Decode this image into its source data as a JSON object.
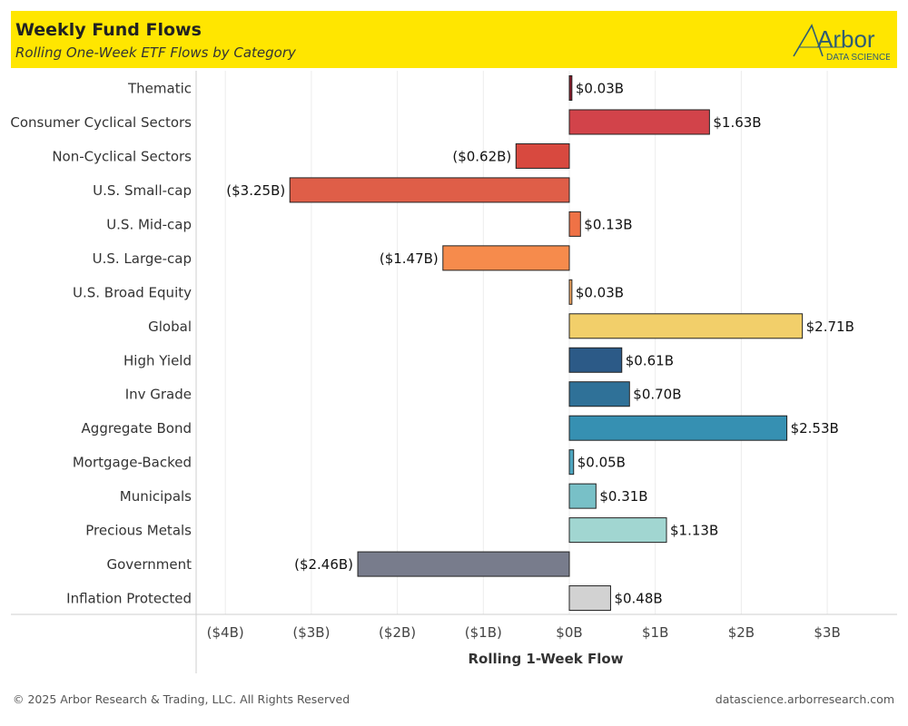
{
  "header": {
    "title": "Weekly Fund Flows",
    "subtitle": "Rolling One-Week ETF Flows by Category",
    "logo_main": "Arbor",
    "logo_sub": "DATA SCIENCE",
    "background": "#ffe600"
  },
  "footer": {
    "copyright": "© 2025 Arbor Research & Trading, LLC. All Rights Reserved",
    "url": "datascience.arborresearch.com"
  },
  "chart_data": {
    "type": "bar",
    "orientation": "horizontal",
    "title": "",
    "xlabel": "Rolling 1-Week Flow",
    "ylabel": "",
    "xlim": [
      -4.3,
      3.8
    ],
    "x_ticks": [
      -4,
      -3,
      -2,
      -1,
      0,
      1,
      2,
      3
    ],
    "x_tick_labels": [
      "($4B)",
      "($3B)",
      "($2B)",
      "($1B)",
      "$0B",
      "$1B",
      "$2B",
      "$3B"
    ],
    "grid": "vertical",
    "categories": [
      "Thematic",
      "Consumer Cyclical Sectors",
      "Non-Cyclical Sectors",
      "U.S. Small-cap",
      "U.S. Mid-cap",
      "U.S. Large-cap",
      "U.S. Broad Equity",
      "Global",
      "High Yield",
      "Inv Grade",
      "Aggregate Bond",
      "Mortgage-Backed",
      "Municipals",
      "Precious Metals",
      "Government",
      "Inflation Protected"
    ],
    "values": [
      0.03,
      1.63,
      -0.62,
      -3.25,
      0.13,
      -1.47,
      0.03,
      2.71,
      0.61,
      0.7,
      2.53,
      0.05,
      0.31,
      1.13,
      -2.46,
      0.48
    ],
    "value_labels": [
      "$0.03B",
      "$1.63B",
      "($0.62B)",
      "($3.25B)",
      "$0.13B",
      "($1.47B)",
      "$0.03B",
      "$2.71B",
      "$0.61B",
      "$0.70B",
      "$2.53B",
      "$0.05B",
      "$0.31B",
      "$1.13B",
      "($2.46B)",
      "$0.48B"
    ],
    "colors": [
      "#8b1a2b",
      "#d2434a",
      "#d8493f",
      "#df5e48",
      "#ef7246",
      "#f68b4c",
      "#f7a962",
      "#f2cf6a",
      "#2c5a87",
      "#2f7198",
      "#3690b2",
      "#4ea6c0",
      "#78c0c7",
      "#a1d6d1",
      "#787c8c",
      "#d2d2d2"
    ]
  }
}
